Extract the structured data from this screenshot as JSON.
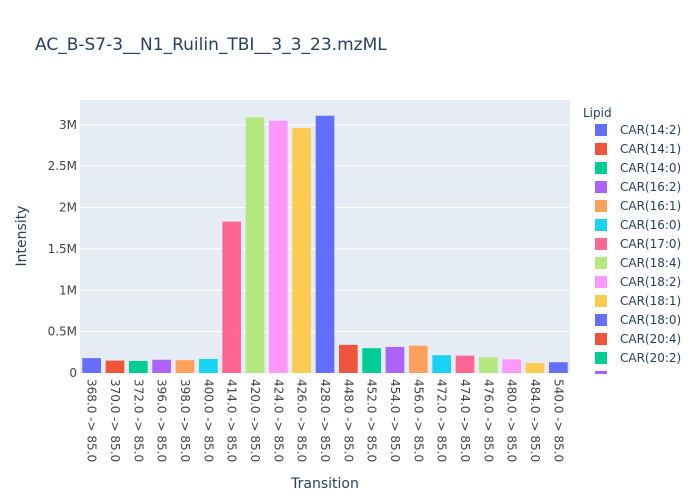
{
  "chart_data": {
    "type": "bar",
    "title": "AC_B-S7-3__N1_Ruilin_TBI__3_3_23.mzML",
    "xlabel": "Transition",
    "ylabel": "Intensity",
    "ylim": [
      0,
      3300000
    ],
    "yticks": [
      {
        "value": 0,
        "label": "0"
      },
      {
        "value": 500000,
        "label": "0.5M"
      },
      {
        "value": 1000000,
        "label": "1M"
      },
      {
        "value": 1500000,
        "label": "1.5M"
      },
      {
        "value": 2000000,
        "label": "2M"
      },
      {
        "value": 2500000,
        "label": "2.5M"
      },
      {
        "value": 3000000,
        "label": "3M"
      }
    ],
    "grid": true,
    "legend_title": "Lipid",
    "legend_position": "right",
    "categories": [
      "368.0 -> 85.0",
      "370.0 -> 85.0",
      "372.0 -> 85.0",
      "396.0 -> 85.0",
      "398.0 -> 85.0",
      "400.0 -> 85.0",
      "414.0 -> 85.0",
      "420.0 -> 85.0",
      "424.0 -> 85.0",
      "426.0 -> 85.0",
      "428.0 -> 85.0",
      "448.0 -> 85.0",
      "452.0 -> 85.0",
      "454.0 -> 85.0",
      "456.0 -> 85.0",
      "472.0 -> 85.0",
      "474.0 -> 85.0",
      "476.0 -> 85.0",
      "480.0 -> 85.0",
      "484.0 -> 85.0",
      "540.0 -> 85.0"
    ],
    "series": [
      {
        "name": "CAR(14:2)",
        "color": "#636efa",
        "category": "368.0 -> 85.0",
        "value": 180000
      },
      {
        "name": "CAR(14:1)",
        "color": "#EF553B",
        "category": "370.0 -> 85.0",
        "value": 150000
      },
      {
        "name": "CAR(14:0)",
        "color": "#00cc96",
        "category": "372.0 -> 85.0",
        "value": 145000
      },
      {
        "name": "CAR(16:2)",
        "color": "#ab63fa",
        "category": "396.0 -> 85.0",
        "value": 160000
      },
      {
        "name": "CAR(16:1)",
        "color": "#FFA15A",
        "category": "398.0 -> 85.0",
        "value": 155000
      },
      {
        "name": "CAR(16:0)",
        "color": "#19d3f3",
        "category": "400.0 -> 85.0",
        "value": 170000
      },
      {
        "name": "CAR(17:0)",
        "color": "#FF6692",
        "category": "414.0 -> 85.0",
        "value": 1830000
      },
      {
        "name": "CAR(18:4)",
        "color": "#B6E880",
        "category": "420.0 -> 85.0",
        "value": 3090000
      },
      {
        "name": "CAR(18:2)",
        "color": "#FF97FF",
        "category": "424.0 -> 85.0",
        "value": 3050000
      },
      {
        "name": "CAR(18:1)",
        "color": "#FECB52",
        "category": "426.0 -> 85.0",
        "value": 2960000
      },
      {
        "name": "CAR(18:0)",
        "color": "#636efa",
        "category": "428.0 -> 85.0",
        "value": 3110000
      },
      {
        "name": "CAR(20:4)",
        "color": "#EF553B",
        "category": "448.0 -> 85.0",
        "value": 340000
      },
      {
        "name": "CAR(20:2)",
        "color": "#00cc96",
        "category": "452.0 -> 85.0",
        "value": 300000
      },
      {
        "name": "",
        "color": "#ab63fa",
        "category": "454.0 -> 85.0",
        "value": 315000
      },
      {
        "name": "",
        "color": "#FFA15A",
        "category": "456.0 -> 85.0",
        "value": 330000
      },
      {
        "name": "",
        "color": "#19d3f3",
        "category": "472.0 -> 85.0",
        "value": 215000
      },
      {
        "name": "",
        "color": "#FF6692",
        "category": "474.0 -> 85.0",
        "value": 210000
      },
      {
        "name": "",
        "color": "#B6E880",
        "category": "476.0 -> 85.0",
        "value": 190000
      },
      {
        "name": "",
        "color": "#FF97FF",
        "category": "480.0 -> 85.0",
        "value": 165000
      },
      {
        "name": "",
        "color": "#FECB52",
        "category": "484.0 -> 85.0",
        "value": 120000
      },
      {
        "name": "",
        "color": "#636efa",
        "category": "540.0 -> 85.0",
        "value": 130000
      }
    ],
    "colors": {
      "plot_bg": "#E5ECF6",
      "grid": "#ffffff",
      "text": "#2a3f5f",
      "tick_text": "#444444"
    }
  }
}
